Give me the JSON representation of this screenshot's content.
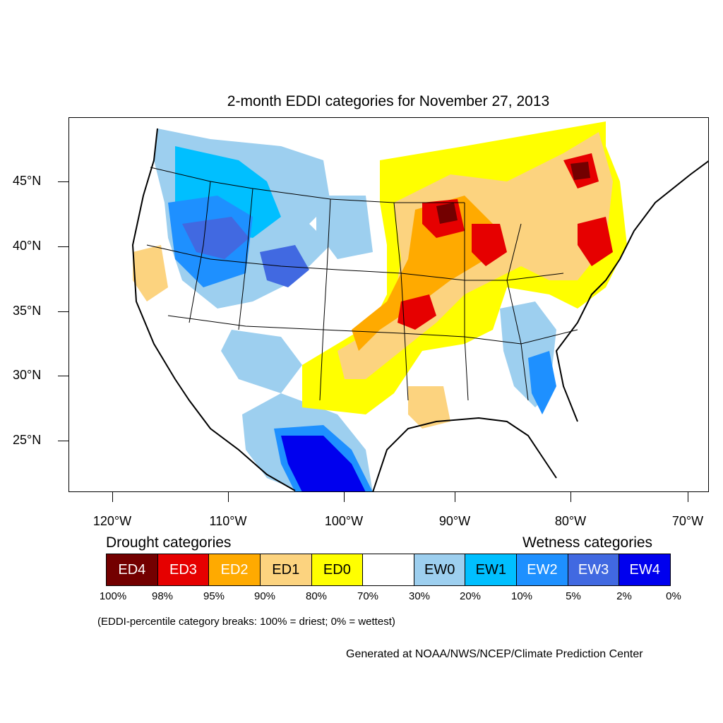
{
  "title": "2-month EDDI categories for November 27, 2013",
  "lat_labels": [
    "45°N",
    "40°N",
    "35°N",
    "30°N",
    "25°N"
  ],
  "lon_labels": [
    "120°W",
    "110°W",
    "100°W",
    "90°W",
    "80°W",
    "70°W"
  ],
  "legend": {
    "drought_heading": "Drought categories",
    "wetness_heading": "Wetness categories",
    "categories": [
      {
        "label": "ED4",
        "color": "#730000",
        "text_color": "#ffffff"
      },
      {
        "label": "ED3",
        "color": "#e60000",
        "text_color": "#ffffff"
      },
      {
        "label": "ED2",
        "color": "#ffaa00",
        "text_color": "#ffffff"
      },
      {
        "label": "ED1",
        "color": "#fcd37f",
        "text_color": "#000000"
      },
      {
        "label": "ED0",
        "color": "#ffff00",
        "text_color": "#000000"
      },
      {
        "label": "",
        "color": "#ffffff",
        "text_color": "#000000"
      },
      {
        "label": "EW0",
        "color": "#9dcfef",
        "text_color": "#000000"
      },
      {
        "label": "EW1",
        "color": "#00bfff",
        "text_color": "#000000"
      },
      {
        "label": "EW2",
        "color": "#1e90ff",
        "text_color": "#ffffff"
      },
      {
        "label": "EW3",
        "color": "#4169e1",
        "text_color": "#ffffff"
      },
      {
        "label": "EW4",
        "color": "#0000ee",
        "text_color": "#ffffff"
      }
    ],
    "percentiles": [
      "100%",
      "98%",
      "95%",
      "90%",
      "80%",
      "70%",
      "30%",
      "20%",
      "10%",
      "5%",
      "2%",
      "0%"
    ]
  },
  "note": "(EDDI-percentile category breaks: 100% = driest; 0% = wettest)",
  "credit": "Generated at NOAA/NWS/NCEP/Climate Prediction Center"
}
